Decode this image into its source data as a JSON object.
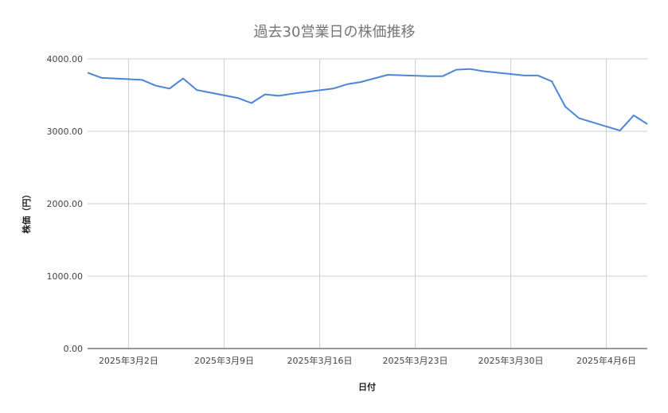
{
  "chart_data": {
    "type": "line",
    "title": "過去30営業日の株価推移",
    "xlabel": "日付",
    "ylabel": "株価（円）",
    "ylim": [
      0,
      4000
    ],
    "y_ticks": [
      "0.00",
      "1000.00",
      "2000.00",
      "3000.00",
      "4000.00"
    ],
    "y_tick_values": [
      0,
      1000,
      2000,
      3000,
      4000
    ],
    "x_ticks": [
      "2025年3月2日",
      "2025年3月9日",
      "2025年3月16日",
      "2025年3月23日",
      "2025年3月30日",
      "2025年4月6日"
    ],
    "x_tick_values": [
      "2025-03-02",
      "2025-03-09",
      "2025-03-16",
      "2025-03-23",
      "2025-03-30",
      "2025-04-06"
    ],
    "xlim": [
      "2025-02-27",
      "2025-04-09"
    ],
    "grid": true,
    "legend": "none",
    "line_color": "#4a86d8",
    "series": [
      {
        "x": [
          "2025-02-27",
          "2025-02-28",
          "2025-03-02",
          "2025-03-03",
          "2025-03-04",
          "2025-03-05",
          "2025-03-06",
          "2025-03-07",
          "2025-03-10",
          "2025-03-11",
          "2025-03-12",
          "2025-03-13",
          "2025-03-14",
          "2025-03-17",
          "2025-03-18",
          "2025-03-19",
          "2025-03-21",
          "2025-03-24",
          "2025-03-25",
          "2025-03-26",
          "2025-03-27",
          "2025-03-28",
          "2025-03-31",
          "2025-04-01",
          "2025-04-02",
          "2025-04-03",
          "2025-04-04",
          "2025-04-07",
          "2025-04-08",
          "2025-04-09"
        ],
        "values": [
          3810,
          3740,
          3720,
          3710,
          3630,
          3590,
          3730,
          3570,
          3460,
          3390,
          3510,
          3490,
          3520,
          3590,
          3650,
          3680,
          3780,
          3760,
          3760,
          3850,
          3860,
          3830,
          3770,
          3770,
          3690,
          3340,
          3180,
          3010,
          3220,
          3100
        ]
      }
    ]
  }
}
